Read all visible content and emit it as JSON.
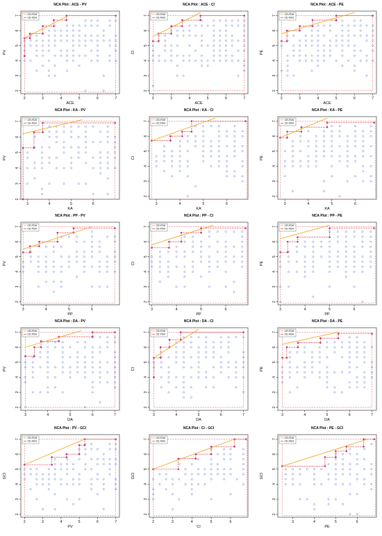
{
  "colors": {
    "points": "#5b6ed6",
    "cr_fdh": "#f5a623",
    "ce_fdh": "#e0484b",
    "ceiling_point": "#c0307a",
    "frame": "#555555",
    "axis": "#000000"
  },
  "chart_data": [
    {
      "type": "scatter",
      "title": "NCA Plot : ACE - PV",
      "xlabel": "ACE",
      "ylabel": "PV",
      "xlim": [
        1.8,
        7.2
      ],
      "ylim": [
        1.8,
        7.3
      ],
      "xticks": [
        2,
        3,
        4,
        5,
        6,
        7
      ],
      "yticks": [
        2,
        3,
        4,
        5,
        6,
        7
      ],
      "legend": [
        "CR-FDH",
        "CE-FDH"
      ],
      "legend_position": "top-left",
      "cr_fdh": [
        [
          2.0,
          5.5
        ],
        [
          4.4,
          7.0
        ]
      ],
      "ce_fdh": [
        [
          2.0,
          4.3
        ],
        [
          2.0,
          5.5
        ],
        [
          2.3,
          5.5
        ],
        [
          2.3,
          5.8
        ],
        [
          3.0,
          5.8
        ],
        [
          3.0,
          6.3
        ],
        [
          3.6,
          6.3
        ],
        [
          3.6,
          6.7
        ],
        [
          4.3,
          6.7
        ],
        [
          4.3,
          7.0
        ],
        [
          7.0,
          7.0
        ]
      ],
      "x_min": 2.0,
      "y_min": 1.9
    },
    {
      "type": "scatter",
      "title": "NCA Plot : ACE - CI",
      "xlabel": "ACE",
      "ylabel": "CI",
      "xlim": [
        1.8,
        7.2
      ],
      "ylim": [
        1.8,
        7.3
      ],
      "xticks": [
        2,
        3,
        4,
        5,
        6,
        7
      ],
      "yticks": [
        2,
        3,
        4,
        5,
        6,
        7
      ],
      "legend": [
        "CR-FDH",
        "CE-FDH"
      ],
      "legend_position": "top-left",
      "cr_fdh": [
        [
          2.0,
          5.6
        ],
        [
          4.6,
          7.2
        ]
      ],
      "ce_fdh": [
        [
          2.0,
          5.3
        ],
        [
          2.3,
          5.3
        ],
        [
          2.3,
          5.8
        ],
        [
          3.0,
          5.8
        ],
        [
          3.0,
          6.3
        ],
        [
          3.6,
          6.3
        ],
        [
          3.6,
          6.7
        ],
        [
          4.6,
          6.7
        ],
        [
          4.6,
          7.0
        ],
        [
          7.0,
          7.0
        ]
      ],
      "x_min": 2.0,
      "y_min": 2.0
    },
    {
      "type": "scatter",
      "title": "NCA Plot : ACE - PE",
      "xlabel": "ACE",
      "ylabel": "PE",
      "xlim": [
        1.8,
        7.2
      ],
      "ylim": [
        1.8,
        7.3
      ],
      "xticks": [
        2,
        3,
        4,
        5,
        6,
        7
      ],
      "yticks": [
        2,
        3,
        4,
        5,
        6,
        7
      ],
      "legend": [
        "CR-FDH",
        "CE-FDH"
      ],
      "legend_position": "top-left",
      "cr_fdh": [
        [
          2.0,
          5.8
        ],
        [
          6.0,
          7.2
        ]
      ],
      "ce_fdh": [
        [
          2.0,
          5.3
        ],
        [
          2.3,
          5.3
        ],
        [
          2.3,
          6.0
        ],
        [
          3.0,
          6.0
        ],
        [
          3.0,
          6.3
        ],
        [
          3.7,
          6.3
        ],
        [
          3.7,
          6.7
        ],
        [
          5.0,
          6.7
        ],
        [
          5.0,
          7.0
        ],
        [
          7.0,
          7.0
        ]
      ],
      "x_min": 2.0,
      "y_min": 2.0
    },
    {
      "type": "scatter",
      "title": "NCA Plot : KA - PV",
      "xlabel": "KA",
      "ylabel": "PV",
      "xlim": [
        2.7,
        7.2
      ],
      "ylim": [
        2.0,
        7.3
      ],
      "xticks": [
        3,
        4,
        5,
        6
      ],
      "yticks": [
        2,
        3,
        4,
        5,
        6,
        7
      ],
      "legend": [
        "CR-FDH",
        "CE-FDH"
      ],
      "legend_position": "top-left",
      "cr_fdh": [
        [
          2.8,
          6.2
        ],
        [
          5.5,
          7.1
        ]
      ],
      "ce_fdh": [
        [
          2.8,
          2.0
        ],
        [
          2.8,
          5.3
        ],
        [
          3.3,
          5.3
        ],
        [
          3.3,
          6.3
        ],
        [
          3.7,
          6.3
        ],
        [
          3.7,
          6.9
        ],
        [
          7.0,
          6.9
        ]
      ],
      "x_min": 2.8,
      "y_min": 2.0
    },
    {
      "type": "scatter",
      "title": "NCA Plot : KA - CI",
      "xlabel": "KA",
      "ylabel": "CI",
      "xlim": [
        2.7,
        6.9
      ],
      "ylim": [
        1.8,
        7.3
      ],
      "xticks": [
        3,
        4,
        5,
        6
      ],
      "yticks": [
        2,
        3,
        4,
        5,
        6,
        7
      ],
      "legend": [
        "CR-FDH",
        "CE-FDH"
      ],
      "legend_position": "top-left",
      "cr_fdh": [
        [
          2.8,
          5.7
        ],
        [
          5.5,
          7.2
        ]
      ],
      "ce_fdh": [
        [
          2.8,
          5.7
        ],
        [
          3.6,
          5.7
        ],
        [
          3.6,
          6.0
        ],
        [
          4.1,
          6.0
        ],
        [
          4.1,
          6.3
        ],
        [
          4.5,
          6.3
        ],
        [
          4.5,
          7.0
        ],
        [
          6.8,
          7.0
        ]
      ],
      "x_min": 2.8,
      "y_min": 1.8
    },
    {
      "type": "scatter",
      "title": "NCA Plot : KA - PE",
      "xlabel": "KA",
      "ylabel": "PE",
      "xlim": [
        2.7,
        6.9
      ],
      "ylim": [
        1.8,
        7.3
      ],
      "xticks": [
        3,
        4,
        5,
        6
      ],
      "yticks": [
        2,
        3,
        4,
        5,
        6,
        7
      ],
      "legend": [
        "CR-FDH",
        "CE-FDH"
      ],
      "legend_position": "top-left",
      "cr_fdh": [
        [
          2.8,
          5.9
        ],
        [
          4.8,
          7.2
        ]
      ],
      "ce_fdh": [
        [
          2.8,
          5.9
        ],
        [
          3.1,
          5.9
        ],
        [
          3.1,
          6.3
        ],
        [
          3.7,
          6.3
        ],
        [
          3.7,
          6.6
        ],
        [
          4.8,
          6.6
        ],
        [
          4.8,
          6.9
        ],
        [
          6.8,
          6.9
        ]
      ],
      "x_min": 2.8,
      "y_min": 1.8
    },
    {
      "type": "scatter",
      "title": "NCA Plot : PP - PV",
      "xlabel": "PP",
      "ylabel": "PV",
      "xlim": [
        2.9,
        7.2
      ],
      "ylim": [
        1.8,
        7.3
      ],
      "xticks": [
        3,
        4,
        5,
        6
      ],
      "yticks": [
        2,
        3,
        4,
        5,
        6,
        7
      ],
      "legend": [
        "CR-FDH",
        "CE-FDH"
      ],
      "legend_position": "top-left",
      "cr_fdh": [
        [
          3.0,
          5.5
        ],
        [
          6.0,
          7.0
        ]
      ],
      "ce_fdh": [
        [
          3.0,
          5.3
        ],
        [
          3.3,
          5.3
        ],
        [
          3.3,
          5.7
        ],
        [
          3.7,
          5.7
        ],
        [
          3.7,
          6.0
        ],
        [
          4.5,
          6.0
        ],
        [
          4.5,
          6.6
        ],
        [
          5.2,
          6.6
        ],
        [
          5.2,
          6.9
        ],
        [
          7.0,
          6.9
        ]
      ],
      "x_min": 3.0,
      "y_min": 1.9
    },
    {
      "type": "scatter",
      "title": "NCA Plot : PP - CI",
      "xlabel": "PP",
      "ylabel": "CI",
      "xlim": [
        2.9,
        6.9
      ],
      "ylim": [
        1.8,
        7.3
      ],
      "xticks": [
        3,
        4,
        5,
        6
      ],
      "yticks": [
        2,
        3,
        4,
        5,
        6,
        7
      ],
      "legend": [
        "CR-FDH",
        "CE-FDH"
      ],
      "legend_position": "top-left",
      "cr_fdh": [
        [
          3.0,
          5.8
        ],
        [
          5.5,
          7.1
        ]
      ],
      "ce_fdh": [
        [
          3.0,
          5.6
        ],
        [
          3.7,
          5.6
        ],
        [
          3.7,
          6.0
        ],
        [
          4.2,
          6.0
        ],
        [
          4.2,
          6.6
        ],
        [
          5.0,
          6.6
        ],
        [
          5.0,
          6.9
        ],
        [
          6.8,
          6.9
        ]
      ],
      "x_min": 3.0,
      "y_min": 1.9
    },
    {
      "type": "scatter",
      "title": "NCA Plot : PP - PE",
      "xlabel": "PP",
      "ylabel": "PE",
      "xlim": [
        2.9,
        6.9
      ],
      "ylim": [
        1.8,
        7.3
      ],
      "xticks": [
        3,
        4,
        5,
        6
      ],
      "yticks": [
        2,
        3,
        4,
        5,
        6,
        7
      ],
      "legend": [
        "CR-FDH",
        "CE-FDH"
      ],
      "legend_position": "top-left",
      "cr_fdh": [
        [
          3.0,
          6.2
        ],
        [
          5.0,
          7.1
        ]
      ],
      "ce_fdh": [
        [
          3.0,
          5.3
        ],
        [
          3.3,
          5.3
        ],
        [
          3.3,
          6.0
        ],
        [
          3.7,
          6.0
        ],
        [
          3.7,
          6.3
        ],
        [
          5.0,
          6.3
        ],
        [
          5.0,
          6.9
        ],
        [
          6.8,
          6.9
        ]
      ],
      "x_min": 3.0,
      "y_min": 1.9
    },
    {
      "type": "scatter",
      "title": "NCA Plot : DA - PV",
      "xlabel": "DA",
      "ylabel": "PV",
      "xlim": [
        2.8,
        7.2
      ],
      "ylim": [
        1.8,
        7.3
      ],
      "xticks": [
        3,
        4,
        5,
        6,
        7
      ],
      "yticks": [
        2,
        3,
        4,
        5,
        6,
        7
      ],
      "legend": [
        "CR-FDH",
        "CE-FDH"
      ],
      "legend_position": "top-left",
      "cr_fdh": [
        [
          3.0,
          6.0
        ],
        [
          5.5,
          7.1
        ]
      ],
      "ce_fdh": [
        [
          3.0,
          5.4
        ],
        [
          3.4,
          5.4
        ],
        [
          3.4,
          6.0
        ],
        [
          3.7,
          6.0
        ],
        [
          3.7,
          6.4
        ],
        [
          4.5,
          6.4
        ],
        [
          4.5,
          6.7
        ],
        [
          6.0,
          6.7
        ],
        [
          6.0,
          7.0
        ],
        [
          7.0,
          7.0
        ]
      ],
      "x_min": 3.0,
      "y_min": 2.0
    },
    {
      "type": "scatter",
      "title": "NCA Plot : DA - CI",
      "xlabel": "DA",
      "ylabel": "CI",
      "xlim": [
        2.8,
        7.2
      ],
      "ylim": [
        1.8,
        7.3
      ],
      "xticks": [
        3,
        4,
        5,
        6,
        7
      ],
      "yticks": [
        2,
        3,
        4,
        5,
        6,
        7
      ],
      "legend": [
        "CR-FDH",
        "CE-FDH"
      ],
      "legend_position": "top-left",
      "cr_fdh": [
        [
          3.0,
          5.3
        ],
        [
          5.0,
          7.2
        ]
      ],
      "ce_fdh": [
        [
          3.0,
          4.0
        ],
        [
          3.0,
          5.3
        ],
        [
          3.3,
          5.3
        ],
        [
          3.3,
          6.0
        ],
        [
          3.7,
          6.0
        ],
        [
          3.7,
          6.5
        ],
        [
          4.2,
          6.5
        ],
        [
          4.2,
          7.0
        ],
        [
          7.0,
          7.0
        ]
      ],
      "x_min": 3.0,
      "y_min": 2.0
    },
    {
      "type": "scatter",
      "title": "NCA Plot : DA - PE",
      "xlabel": "DA",
      "ylabel": "PE",
      "xlim": [
        2.8,
        7.2
      ],
      "ylim": [
        1.8,
        7.3
      ],
      "xticks": [
        3,
        4,
        5,
        6,
        7
      ],
      "yticks": [
        2,
        3,
        4,
        5,
        6,
        7
      ],
      "legend": [
        "CR-FDH",
        "CE-FDH"
      ],
      "legend_position": "top-left",
      "cr_fdh": [
        [
          3.0,
          6.2
        ],
        [
          5.5,
          7.0
        ]
      ],
      "ce_fdh": [
        [
          3.0,
          5.3
        ],
        [
          3.2,
          5.3
        ],
        [
          3.2,
          6.0
        ],
        [
          3.7,
          6.0
        ],
        [
          3.7,
          6.3
        ],
        [
          4.7,
          6.3
        ],
        [
          4.7,
          6.6
        ],
        [
          5.5,
          6.6
        ],
        [
          5.5,
          6.9
        ],
        [
          7.0,
          6.9
        ]
      ],
      "x_min": 3.0,
      "y_min": 2.0
    },
    {
      "type": "scatter",
      "title": "NCA Plot : PV - GCI",
      "xlabel": "PV",
      "ylabel": "GCI",
      "xlim": [
        1.8,
        7.2
      ],
      "ylim": [
        1.8,
        7.3
      ],
      "xticks": [
        2,
        3,
        4,
        5,
        6,
        7
      ],
      "yticks": [
        2,
        3,
        4,
        5,
        6,
        7
      ],
      "legend": [
        "CR-FDH",
        "CE-FDH"
      ],
      "legend_position": "top-left",
      "cr_fdh": [
        [
          2.0,
          5.3
        ],
        [
          5.3,
          7.0
        ]
      ],
      "ce_fdh": [
        [
          2.0,
          5.3
        ],
        [
          3.5,
          5.3
        ],
        [
          3.5,
          5.8
        ],
        [
          4.3,
          5.8
        ],
        [
          4.3,
          6.0
        ],
        [
          5.0,
          6.0
        ],
        [
          5.0,
          6.6
        ],
        [
          5.3,
          6.6
        ],
        [
          5.3,
          7.0
        ],
        [
          7.0,
          7.0
        ]
      ],
      "x_min": 2.0,
      "y_min": 1.9
    },
    {
      "type": "scatter",
      "title": "NCA Plot : CI - GCI",
      "xlabel": "CI",
      "ylabel": "GCI",
      "xlim": [
        1.8,
        6.9
      ],
      "ylim": [
        1.8,
        7.3
      ],
      "xticks": [
        2,
        3,
        4,
        5,
        6
      ],
      "yticks": [
        2,
        3,
        4,
        5,
        6,
        7
      ],
      "legend": [
        "CR-FDH",
        "CE-FDH"
      ],
      "legend_position": "top-left",
      "cr_fdh": [
        [
          2.0,
          5.0
        ],
        [
          6.2,
          7.0
        ]
      ],
      "ce_fdh": [
        [
          2.0,
          5.0
        ],
        [
          3.3,
          5.0
        ],
        [
          3.3,
          5.7
        ],
        [
          4.2,
          5.7
        ],
        [
          4.2,
          6.0
        ],
        [
          5.0,
          6.0
        ],
        [
          5.0,
          6.5
        ],
        [
          6.2,
          6.5
        ],
        [
          6.2,
          7.0
        ],
        [
          6.8,
          7.0
        ]
      ],
      "x_min": 2.0,
      "y_min": 1.9
    },
    {
      "type": "scatter",
      "title": "NCA Plot : PE - GCI",
      "xlabel": "PE",
      "ylabel": "GCI",
      "xlim": [
        2.3,
        6.9
      ],
      "ylim": [
        1.8,
        7.3
      ],
      "xticks": [
        3,
        4,
        5,
        6
      ],
      "yticks": [
        2,
        3,
        4,
        5,
        6,
        7
      ],
      "legend": [
        "CR-FDH",
        "CE-FDH"
      ],
      "legend_position": "top-left",
      "cr_fdh": [
        [
          2.5,
          5.2
        ],
        [
          6.5,
          7.0
        ]
      ],
      "ce_fdh": [
        [
          2.5,
          5.2
        ],
        [
          4.5,
          5.2
        ],
        [
          4.5,
          5.8
        ],
        [
          5.0,
          5.8
        ],
        [
          5.0,
          6.2
        ],
        [
          5.5,
          6.2
        ],
        [
          5.5,
          6.5
        ],
        [
          6.3,
          6.5
        ],
        [
          6.3,
          7.0
        ],
        [
          6.8,
          7.0
        ]
      ],
      "x_min": 2.5,
      "y_min": 1.9
    }
  ]
}
